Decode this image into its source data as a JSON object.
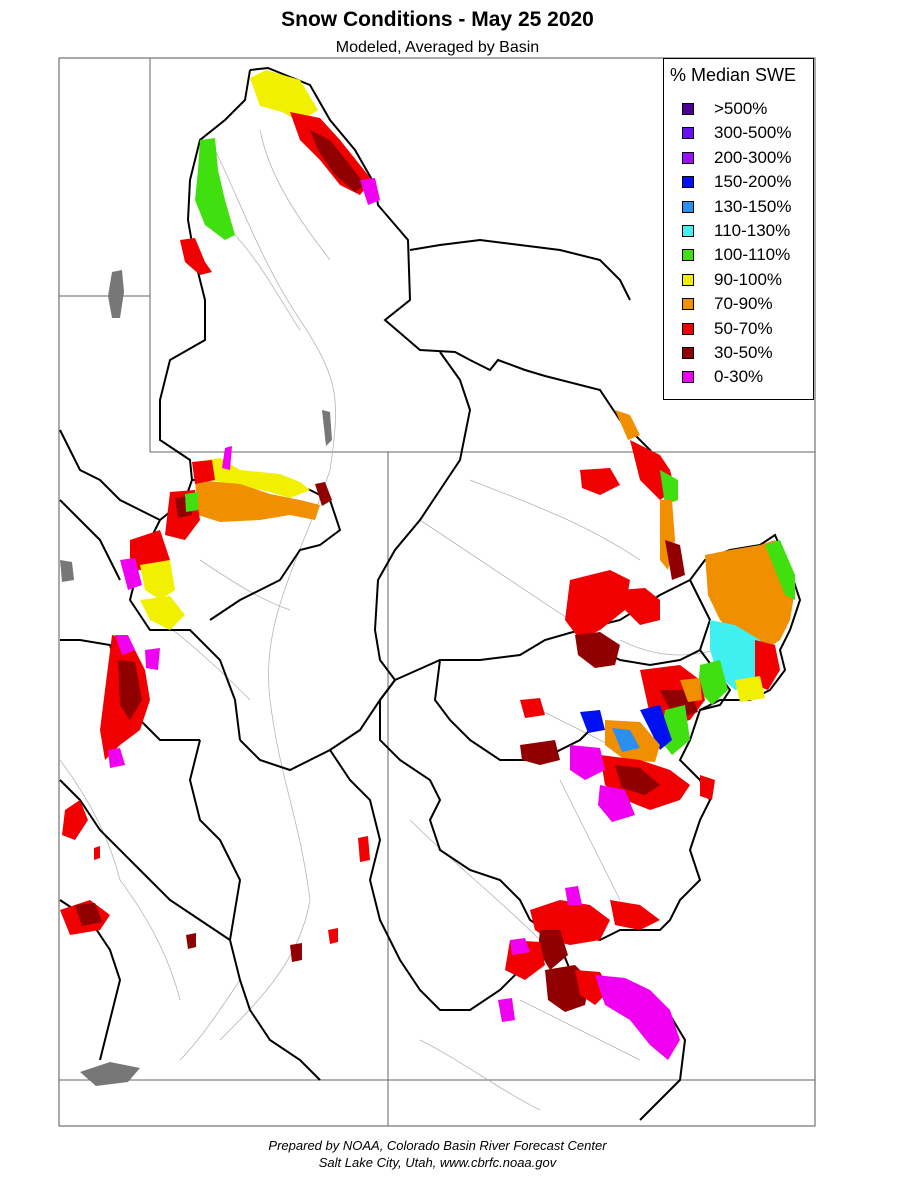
{
  "title": "Snow Conditions - May 25 2020",
  "subtitle": "Modeled, Averaged by Basin",
  "legend": {
    "title": "% Median SWE",
    "placement": "top-right",
    "items": [
      {
        "label": ">500%",
        "color": "#4b0093"
      },
      {
        "label": "300-500%",
        "color": "#6a0ff0"
      },
      {
        "label": "200-300%",
        "color": "#9b10ff"
      },
      {
        "label": "150-200%",
        "color": "#0010f0"
      },
      {
        "label": "130-150%",
        "color": "#2a8ff0"
      },
      {
        "label": "110-130%",
        "color": "#40f0f0"
      },
      {
        "label": "100-110%",
        "color": "#40e010"
      },
      {
        "label": "90-100%",
        "color": "#f0f000"
      },
      {
        "label": "70-90%",
        "color": "#f08f00"
      },
      {
        "label": "50-70%",
        "color": "#f00000"
      },
      {
        "label": "30-50%",
        "color": "#900000"
      },
      {
        "label": "0-30%",
        "color": "#f000f0"
      }
    ]
  },
  "footer": {
    "line1": "Prepared by NOAA, Colorado Basin River Forecast Center",
    "line2": "Salt Lake City, Utah, www.cbrfc.noaa.gov"
  }
}
